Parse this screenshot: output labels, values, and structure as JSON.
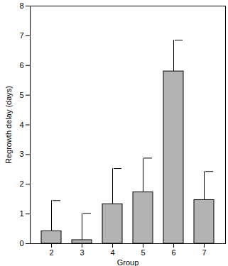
{
  "chart_data": {
    "type": "bar",
    "categories": [
      "2",
      "3",
      "4",
      "5",
      "6",
      "7"
    ],
    "values": [
      0.42,
      0.12,
      1.33,
      1.73,
      5.8,
      1.47
    ],
    "errors": [
      1.03,
      0.9,
      1.2,
      1.15,
      1.05,
      0.96
    ],
    "color": "#b3b3b3",
    "x_label": "Group",
    "y_label": "Regrowth delay (days)",
    "ylim": [
      0,
      8
    ],
    "yticks": [
      0,
      1,
      2,
      3,
      4,
      5,
      6,
      7,
      8
    ],
    "grid": false
  }
}
